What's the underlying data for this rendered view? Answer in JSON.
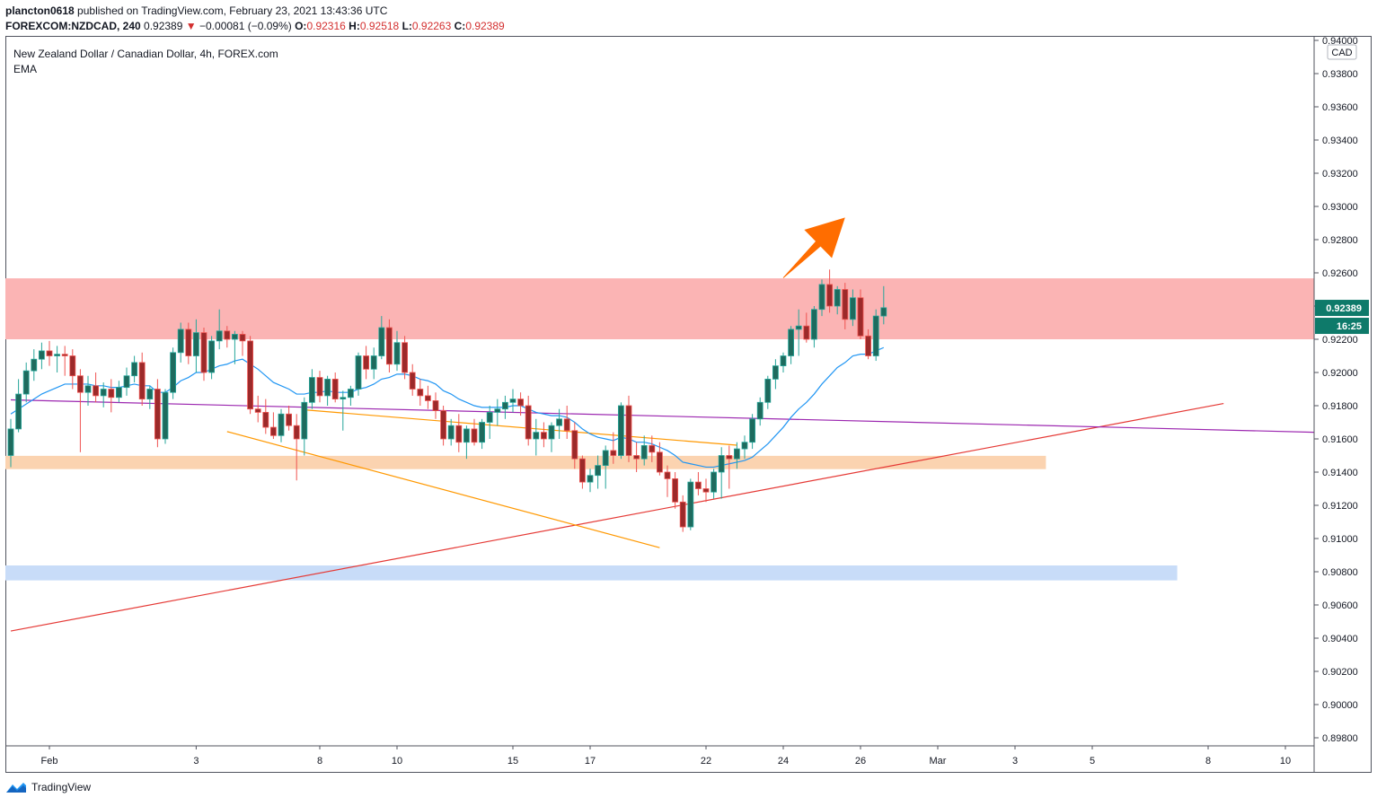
{
  "header": {
    "publisher": "plancton0618",
    "published_text": "published on TradingView.com, February 23, 2021 13:43:36 UTC",
    "symbol": "FOREXCOM:NZDCAD, 240",
    "last": "0.92389",
    "change_arrow": "▼",
    "change": "−0.00081 (−0.09%)",
    "o_label": "O:",
    "o_value": "0.92316",
    "h_label": "H:",
    "h_value": "0.92518",
    "l_label": "L:",
    "l_value": "0.92263",
    "c_label": "C:",
    "c_value": "0.92389"
  },
  "legend": {
    "title": "New Zealand Dollar / Canadian Dollar, 4h, FOREX.com",
    "indicator": "EMA"
  },
  "footer": {
    "brand": "TradingView",
    "icon": "tradingview-logo-icon"
  },
  "colors": {
    "up": "#26a69a",
    "down": "#ef5350",
    "up_body": "#1e6b5e",
    "down_body": "#9c2a2a",
    "ema": "#2196f3",
    "resistance_zone": "#fbb4b4",
    "support_zone": "#fbd3b0",
    "lower_zone": "#c8dcf8",
    "channel": "#ff9800",
    "trendline": "#e53935",
    "horizontal_line": "#9c27b0",
    "arrow": "#ff6d00",
    "price_tag": "#0e7a6a"
  },
  "chart_data": {
    "type": "candlestick",
    "price_axis": {
      "unit_badge": "CAD",
      "range": [
        0.897,
        0.9405
      ],
      "ticks": [
        "0.94000",
        "0.93800",
        "0.93600",
        "0.93400",
        "0.93200",
        "0.93000",
        "0.92800",
        "0.92600",
        "0.92400",
        "0.92200",
        "0.92000",
        "0.91800",
        "0.91600",
        "0.91400",
        "0.91200",
        "0.91000",
        "0.90800",
        "0.90600",
        "0.90400",
        "0.90200",
        "0.90000",
        "0.89800"
      ],
      "last_price_label": "0.92389",
      "countdown_label": "16:25"
    },
    "time_axis": {
      "labels": [
        "Feb",
        "3",
        "8",
        "10",
        "15",
        "17",
        "22",
        "24",
        "26",
        "Mar",
        "3",
        "5",
        "8",
        "10"
      ],
      "label_bar_index": [
        5,
        24,
        40,
        50,
        65,
        75,
        90,
        100,
        110,
        120,
        130,
        140,
        155,
        165
      ]
    },
    "candles": [
      [
        0.915,
        0.9172,
        0.9143,
        0.9166
      ],
      [
        0.9166,
        0.9196,
        0.9164,
        0.9187
      ],
      [
        0.9187,
        0.9206,
        0.9182,
        0.9201
      ],
      [
        0.9201,
        0.9214,
        0.9195,
        0.9208
      ],
      [
        0.9208,
        0.9218,
        0.9202,
        0.9213
      ],
      [
        0.9213,
        0.9219,
        0.9204,
        0.921
      ],
      [
        0.921,
        0.9216,
        0.92,
        0.9211
      ],
      [
        0.9211,
        0.9216,
        0.9198,
        0.921
      ],
      [
        0.921,
        0.9214,
        0.919,
        0.9198
      ],
      [
        0.9198,
        0.9202,
        0.9152,
        0.9188
      ],
      [
        0.9188,
        0.9198,
        0.918,
        0.9192
      ],
      [
        0.9192,
        0.92,
        0.9182,
        0.9186
      ],
      [
        0.9186,
        0.9194,
        0.9179,
        0.919
      ],
      [
        0.919,
        0.9196,
        0.9176,
        0.9185
      ],
      [
        0.9185,
        0.9195,
        0.9182,
        0.9191
      ],
      [
        0.9191,
        0.9203,
        0.9186,
        0.9198
      ],
      [
        0.9198,
        0.921,
        0.9194,
        0.9206
      ],
      [
        0.9206,
        0.9212,
        0.918,
        0.9184
      ],
      [
        0.9184,
        0.9192,
        0.9178,
        0.919
      ],
      [
        0.919,
        0.9196,
        0.9155,
        0.916
      ],
      [
        0.916,
        0.919,
        0.9157,
        0.9188
      ],
      [
        0.9188,
        0.9215,
        0.9184,
        0.9212
      ],
      [
        0.9212,
        0.923,
        0.9206,
        0.9226
      ],
      [
        0.9226,
        0.923,
        0.9205,
        0.921
      ],
      [
        0.921,
        0.9232,
        0.92,
        0.9224
      ],
      [
        0.9224,
        0.9227,
        0.9195,
        0.92
      ],
      [
        0.92,
        0.9222,
        0.9196,
        0.9219
      ],
      [
        0.9219,
        0.9238,
        0.9214,
        0.9225
      ],
      [
        0.9225,
        0.9228,
        0.9215,
        0.922
      ],
      [
        0.922,
        0.9225,
        0.9205,
        0.9223
      ],
      [
        0.9223,
        0.9225,
        0.921,
        0.9219
      ],
      [
        0.9219,
        0.9222,
        0.9175,
        0.9178
      ],
      [
        0.9178,
        0.9186,
        0.917,
        0.9176
      ],
      [
        0.9176,
        0.9184,
        0.9163,
        0.9167
      ],
      [
        0.9167,
        0.9176,
        0.916,
        0.9162
      ],
      [
        0.9162,
        0.9178,
        0.9158,
        0.9175
      ],
      [
        0.9175,
        0.918,
        0.9165,
        0.9168
      ],
      [
        0.9168,
        0.9175,
        0.9135,
        0.916
      ],
      [
        0.916,
        0.9185,
        0.915,
        0.9182
      ],
      [
        0.9182,
        0.9202,
        0.9178,
        0.9197
      ],
      [
        0.9197,
        0.9201,
        0.9182,
        0.9186
      ],
      [
        0.9186,
        0.9198,
        0.918,
        0.9196
      ],
      [
        0.9196,
        0.92,
        0.9182,
        0.9184
      ],
      [
        0.9184,
        0.9189,
        0.9165,
        0.9185
      ],
      [
        0.9185,
        0.9192,
        0.918,
        0.919
      ],
      [
        0.919,
        0.9212,
        0.9186,
        0.921
      ],
      [
        0.921,
        0.9216,
        0.9196,
        0.9202
      ],
      [
        0.9202,
        0.9215,
        0.9196,
        0.921
      ],
      [
        0.921,
        0.9234,
        0.9208,
        0.9227
      ],
      [
        0.9227,
        0.9232,
        0.92,
        0.9205
      ],
      [
        0.9205,
        0.9225,
        0.9201,
        0.9218
      ],
      [
        0.9218,
        0.9222,
        0.9196,
        0.92
      ],
      [
        0.92,
        0.9205,
        0.9186,
        0.919
      ],
      [
        0.919,
        0.9196,
        0.918,
        0.9186
      ],
      [
        0.9186,
        0.9192,
        0.9178,
        0.9183
      ],
      [
        0.9183,
        0.9188,
        0.9172,
        0.9177
      ],
      [
        0.9177,
        0.918,
        0.9156,
        0.916
      ],
      [
        0.916,
        0.9172,
        0.9156,
        0.9168
      ],
      [
        0.9168,
        0.9175,
        0.9152,
        0.9158
      ],
      [
        0.9158,
        0.9168,
        0.9148,
        0.9166
      ],
      [
        0.9166,
        0.9172,
        0.9156,
        0.9158
      ],
      [
        0.9158,
        0.9172,
        0.9154,
        0.917
      ],
      [
        0.917,
        0.918,
        0.916,
        0.9176
      ],
      [
        0.9176,
        0.9184,
        0.9168,
        0.9178
      ],
      [
        0.9178,
        0.9186,
        0.9172,
        0.9182
      ],
      [
        0.9182,
        0.919,
        0.9176,
        0.9184
      ],
      [
        0.9184,
        0.9188,
        0.9174,
        0.918
      ],
      [
        0.918,
        0.9186,
        0.9156,
        0.916
      ],
      [
        0.916,
        0.9172,
        0.915,
        0.9164
      ],
      [
        0.9164,
        0.917,
        0.9155,
        0.916
      ],
      [
        0.916,
        0.917,
        0.9152,
        0.9168
      ],
      [
        0.9168,
        0.9178,
        0.916,
        0.9172
      ],
      [
        0.9172,
        0.918,
        0.916,
        0.9165
      ],
      [
        0.9165,
        0.917,
        0.9142,
        0.9148
      ],
      [
        0.9148,
        0.915,
        0.913,
        0.9134
      ],
      [
        0.9134,
        0.9142,
        0.9128,
        0.9138
      ],
      [
        0.9138,
        0.915,
        0.913,
        0.9144
      ],
      [
        0.9144,
        0.9156,
        0.913,
        0.9153
      ],
      [
        0.9153,
        0.9164,
        0.9145,
        0.915
      ],
      [
        0.915,
        0.9182,
        0.9148,
        0.918
      ],
      [
        0.918,
        0.9186,
        0.9146,
        0.915
      ],
      [
        0.915,
        0.9158,
        0.914,
        0.9148
      ],
      [
        0.9148,
        0.9162,
        0.9144,
        0.9156
      ],
      [
        0.9156,
        0.9162,
        0.9146,
        0.9152
      ],
      [
        0.9152,
        0.9158,
        0.9138,
        0.914
      ],
      [
        0.914,
        0.9144,
        0.9125,
        0.9136
      ],
      [
        0.9136,
        0.914,
        0.9118,
        0.9122
      ],
      [
        0.9122,
        0.9126,
        0.9104,
        0.9107
      ],
      [
        0.9107,
        0.9136,
        0.9105,
        0.9134
      ],
      [
        0.9134,
        0.914,
        0.9126,
        0.913
      ],
      [
        0.913,
        0.9136,
        0.9122,
        0.9128
      ],
      [
        0.9128,
        0.9142,
        0.9124,
        0.914
      ],
      [
        0.914,
        0.9155,
        0.9124,
        0.915
      ],
      [
        0.915,
        0.9156,
        0.913,
        0.9148
      ],
      [
        0.9148,
        0.9158,
        0.9142,
        0.9154
      ],
      [
        0.9154,
        0.9162,
        0.9148,
        0.9158
      ],
      [
        0.9158,
        0.9175,
        0.9154,
        0.9172
      ],
      [
        0.9172,
        0.9185,
        0.9168,
        0.9182
      ],
      [
        0.9182,
        0.9198,
        0.9178,
        0.9196
      ],
      [
        0.9196,
        0.9208,
        0.919,
        0.9204
      ],
      [
        0.9204,
        0.9212,
        0.92,
        0.921
      ],
      [
        0.921,
        0.9228,
        0.9205,
        0.9226
      ],
      [
        0.9226,
        0.9238,
        0.921,
        0.9228
      ],
      [
        0.9228,
        0.9236,
        0.9218,
        0.922
      ],
      [
        0.922,
        0.924,
        0.9215,
        0.9238
      ],
      [
        0.9238,
        0.9256,
        0.9234,
        0.9253
      ],
      [
        0.9253,
        0.9262,
        0.9236,
        0.924
      ],
      [
        0.924,
        0.9252,
        0.9235,
        0.925
      ],
      [
        0.925,
        0.9254,
        0.9226,
        0.9232
      ],
      [
        0.9232,
        0.925,
        0.9228,
        0.9245
      ],
      [
        0.9245,
        0.925,
        0.922,
        0.9222
      ],
      [
        0.9222,
        0.9226,
        0.9208,
        0.921
      ],
      [
        0.921,
        0.9238,
        0.9207,
        0.9234
      ],
      [
        0.9234,
        0.9252,
        0.9229,
        0.9239
      ]
    ],
    "ema": [
      0.9175,
      0.9178,
      0.9181,
      0.9184,
      0.9187,
      0.9189,
      0.9191,
      0.9193,
      0.9193,
      0.9193,
      0.9193,
      0.9192,
      0.9192,
      0.9191,
      0.9191,
      0.9192,
      0.9193,
      0.9192,
      0.9192,
      0.9188,
      0.9188,
      0.9191,
      0.9195,
      0.9197,
      0.92,
      0.92,
      0.9202,
      0.9204,
      0.9205,
      0.9207,
      0.9208,
      0.9205,
      0.9202,
      0.9198,
      0.9194,
      0.9192,
      0.919,
      0.9187,
      0.9187,
      0.9188,
      0.9188,
      0.9189,
      0.9188,
      0.9188,
      0.9188,
      0.919,
      0.9191,
      0.9193,
      0.9196,
      0.9197,
      0.9199,
      0.9199,
      0.9198,
      0.9196,
      0.9195,
      0.9193,
      0.9189,
      0.9187,
      0.9184,
      0.9182,
      0.918,
      0.9179,
      0.9179,
      0.9179,
      0.9179,
      0.918,
      0.918,
      0.9178,
      0.9176,
      0.9175,
      0.9174,
      0.9174,
      0.9173,
      0.917,
      0.9166,
      0.9163,
      0.9161,
      0.916,
      0.9159,
      0.9161,
      0.916,
      0.9158,
      0.9158,
      0.9157,
      0.9155,
      0.9153,
      0.915,
      0.9146,
      0.9145,
      0.9144,
      0.9143,
      0.9143,
      0.9144,
      0.9145,
      0.9146,
      0.9147,
      0.9149,
      0.9153,
      0.9157,
      0.9162,
      0.9167,
      0.9173,
      0.9178,
      0.9182,
      0.9187,
      0.9193,
      0.9198,
      0.9203,
      0.9206,
      0.921,
      0.9211,
      0.9211,
      0.9213,
      0.9215
    ],
    "zones": [
      {
        "name": "resistance",
        "from": 0.922,
        "to": 0.92567,
        "end_bar": 176,
        "color": "#fbb4b4"
      },
      {
        "name": "support",
        "from": 0.91418,
        "to": 0.91498,
        "end_bar": 134,
        "color": "#fbd3b0"
      },
      {
        "name": "lower",
        "from": 0.90748,
        "to": 0.90838,
        "end_bar": 151,
        "color": "#c8dcf8"
      }
    ],
    "lines": [
      {
        "name": "trendline",
        "from": [
          0,
          0.90443
        ],
        "to": [
          157,
          0.91813
        ],
        "color": "#e53935"
      },
      {
        "name": "horizontal-line",
        "from": [
          0,
          0.91835
        ],
        "to": [
          176,
          0.9164
        ],
        "color": "#9c27b0"
      },
      {
        "name": "channel-upper",
        "from": [
          38,
          0.91775
        ],
        "to": [
          94,
          0.91562
        ],
        "color": "#ff9800"
      },
      {
        "name": "channel-lower",
        "from": [
          28,
          0.91644
        ],
        "to": [
          84,
          0.90945
        ],
        "color": "#ff9800"
      }
    ],
    "arrow": {
      "from": [
        100,
        0.9257
      ],
      "to": [
        108,
        0.92933
      ],
      "color": "#ff6d00"
    }
  }
}
